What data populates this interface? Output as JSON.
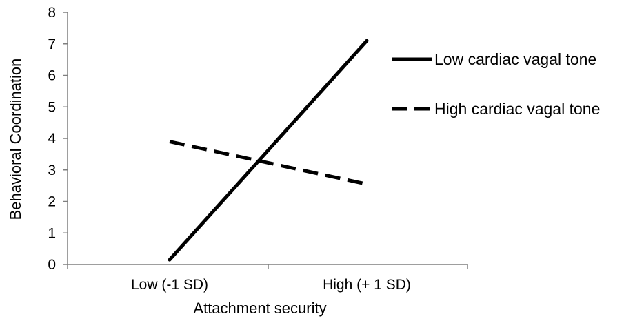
{
  "chart_data": {
    "type": "line",
    "title": "",
    "xlabel": "Attachment security",
    "ylabel": "Behavioral Coordination",
    "categories": [
      "Low (-1 SD)",
      "High (+ 1 SD)"
    ],
    "ylim": [
      0,
      8
    ],
    "yticks": [
      "0",
      "1",
      "2",
      "3",
      "4",
      "5",
      "6",
      "7",
      "8"
    ],
    "grid": false,
    "legend_position": "right",
    "series": [
      {
        "name": "Low cardiac vagal tone",
        "values": [
          0.15,
          7.1
        ],
        "line_style": "solid",
        "color": "#000000"
      },
      {
        "name": "High cardiac vagal tone",
        "values": [
          3.9,
          2.55
        ],
        "line_style": "dashed",
        "color": "#000000"
      }
    ]
  }
}
